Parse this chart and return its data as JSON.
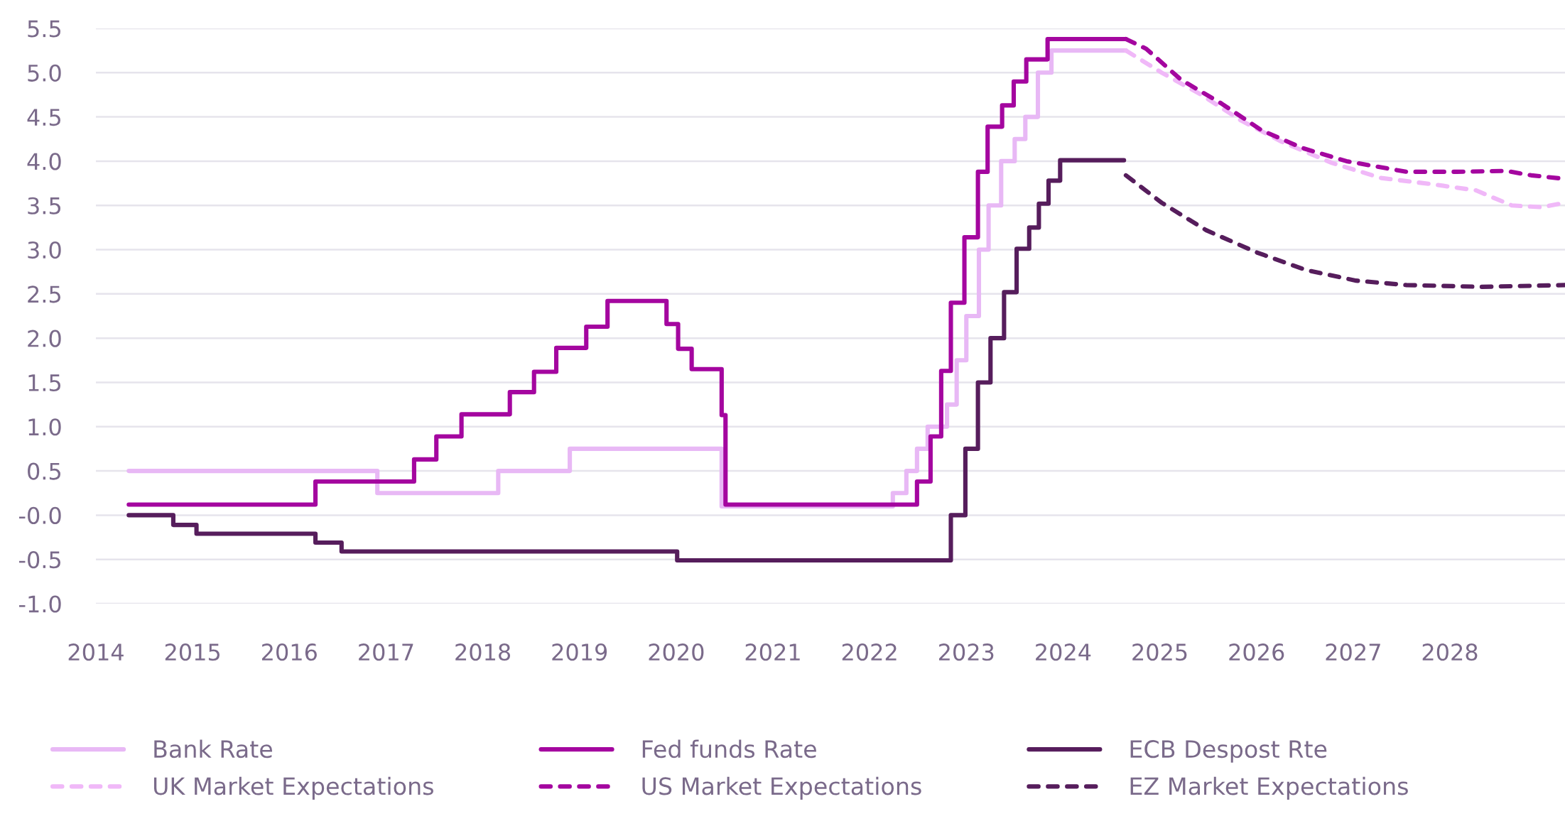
{
  "chart_data": {
    "type": "line",
    "xlim": [
      2014,
      2029.19
    ],
    "xticks": [
      2014,
      2015,
      2016,
      2017,
      2018,
      2019,
      2020,
      2021,
      2022,
      2023,
      2024,
      2025,
      2026,
      2027,
      2028
    ],
    "ylim": [
      -1.0,
      5.5
    ],
    "yticks": [
      {
        "value": -1.0,
        "label": "-1.0"
      },
      {
        "value": -0.5,
        "label": "-0.5"
      },
      {
        "value": 0,
        "label": "-0.0"
      },
      {
        "value": 0.5,
        "label": "0.5"
      },
      {
        "value": 1.0,
        "label": "1.0"
      },
      {
        "value": 1.5,
        "label": "1.5"
      },
      {
        "value": 2.0,
        "label": "2.0"
      },
      {
        "value": 2.5,
        "label": "2.5"
      },
      {
        "value": 3.0,
        "label": "3.0"
      },
      {
        "value": 3.5,
        "label": "3.5"
      },
      {
        "value": 4.0,
        "label": "4.0"
      },
      {
        "value": 4.5,
        "label": "4.5"
      },
      {
        "value": 5.0,
        "label": "5.0"
      },
      {
        "value": 5.5,
        "label": "5.5"
      }
    ],
    "grid": "y",
    "legend": "bottom",
    "series": [
      {
        "name": "Bank Rate",
        "type": "step",
        "line_style": "solid",
        "color": "#e8b8f5",
        "x": [
          2014.34,
          2016.91,
          2018.16,
          2018.9,
          2020.47,
          2022.24,
          2022.38,
          2022.49,
          2022.6,
          2022.8,
          2022.9,
          2023.0,
          2023.13,
          2023.23,
          2023.36,
          2023.5,
          2023.61,
          2023.74,
          2023.88,
          2024.65
        ],
        "values": [
          0.5,
          0.25,
          0.5,
          0.75,
          0.1,
          0.25,
          0.5,
          0.75,
          1.0,
          1.25,
          1.75,
          2.25,
          3.0,
          3.5,
          4.0,
          4.25,
          4.5,
          5.0,
          5.25,
          5.25
        ]
      },
      {
        "name": "UK Market Expectations",
        "line_style": "dashed",
        "color": "#f0b8f8",
        "x": [
          2024.65,
          2025.02,
          2025.43,
          2025.84,
          2026.26,
          2026.78,
          2027.29,
          2027.81,
          2028.27,
          2028.64,
          2028.95,
          2029.19
        ],
        "values": [
          5.25,
          5.0,
          4.75,
          4.46,
          4.22,
          3.98,
          3.81,
          3.74,
          3.67,
          3.5,
          3.48,
          3.53
        ]
      },
      {
        "name": "Fed funds Rate",
        "type": "step",
        "line_style": "solid",
        "color": "#a4069f",
        "x": [
          2014.34,
          2016.27,
          2017.29,
          2017.52,
          2017.78,
          2018.28,
          2018.53,
          2018.76,
          2019.07,
          2019.29,
          2019.9,
          2020.02,
          2020.16,
          2020.47,
          2020.51,
          2022.49,
          2022.63,
          2022.74,
          2022.84,
          2022.98,
          2023.12,
          2023.22,
          2023.37,
          2023.49,
          2023.62,
          2023.84,
          2024.65
        ],
        "values": [
          0.12,
          0.38,
          0.63,
          0.89,
          1.14,
          1.39,
          1.62,
          1.89,
          2.13,
          2.42,
          2.16,
          1.88,
          1.65,
          1.13,
          0.12,
          0.38,
          0.89,
          1.63,
          2.4,
          3.14,
          3.88,
          4.39,
          4.63,
          4.9,
          5.15,
          5.38,
          5.38
        ]
      },
      {
        "name": "US Market Expectations",
        "line_style": "dashed",
        "color": "#a4069f",
        "x": [
          2024.65,
          2024.86,
          2025.22,
          2025.64,
          2026.05,
          2026.47,
          2026.93,
          2027.55,
          2028.07,
          2028.58,
          2028.84,
          2029.19
        ],
        "values": [
          5.38,
          5.27,
          4.92,
          4.65,
          4.35,
          4.15,
          4.0,
          3.88,
          3.88,
          3.89,
          3.84,
          3.8
        ]
      },
      {
        "name": "ECB Despost Rte",
        "type": "step",
        "line_style": "solid",
        "color": "#561d5c",
        "x": [
          2014.34,
          2014.8,
          2015.04,
          2016.27,
          2016.54,
          2020.01,
          2022.84,
          2022.99,
          2023.12,
          2023.25,
          2023.39,
          2023.52,
          2023.65,
          2023.75,
          2023.85,
          2023.97,
          2024.63
        ],
        "values": [
          0.0,
          -0.11,
          -0.21,
          -0.31,
          -0.41,
          -0.51,
          0.0,
          0.75,
          1.5,
          2.0,
          2.52,
          3.01,
          3.25,
          3.52,
          3.78,
          4.01,
          4.01
        ]
      },
      {
        "name": "EZ Market Expectations",
        "line_style": "dashed",
        "color": "#561d5c",
        "x": [
          2024.65,
          2025.02,
          2025.48,
          2026.0,
          2026.51,
          2027.03,
          2027.55,
          2028.33,
          2029.19
        ],
        "values": [
          3.84,
          3.53,
          3.22,
          2.97,
          2.77,
          2.65,
          2.6,
          2.58,
          2.6
        ]
      }
    ]
  }
}
